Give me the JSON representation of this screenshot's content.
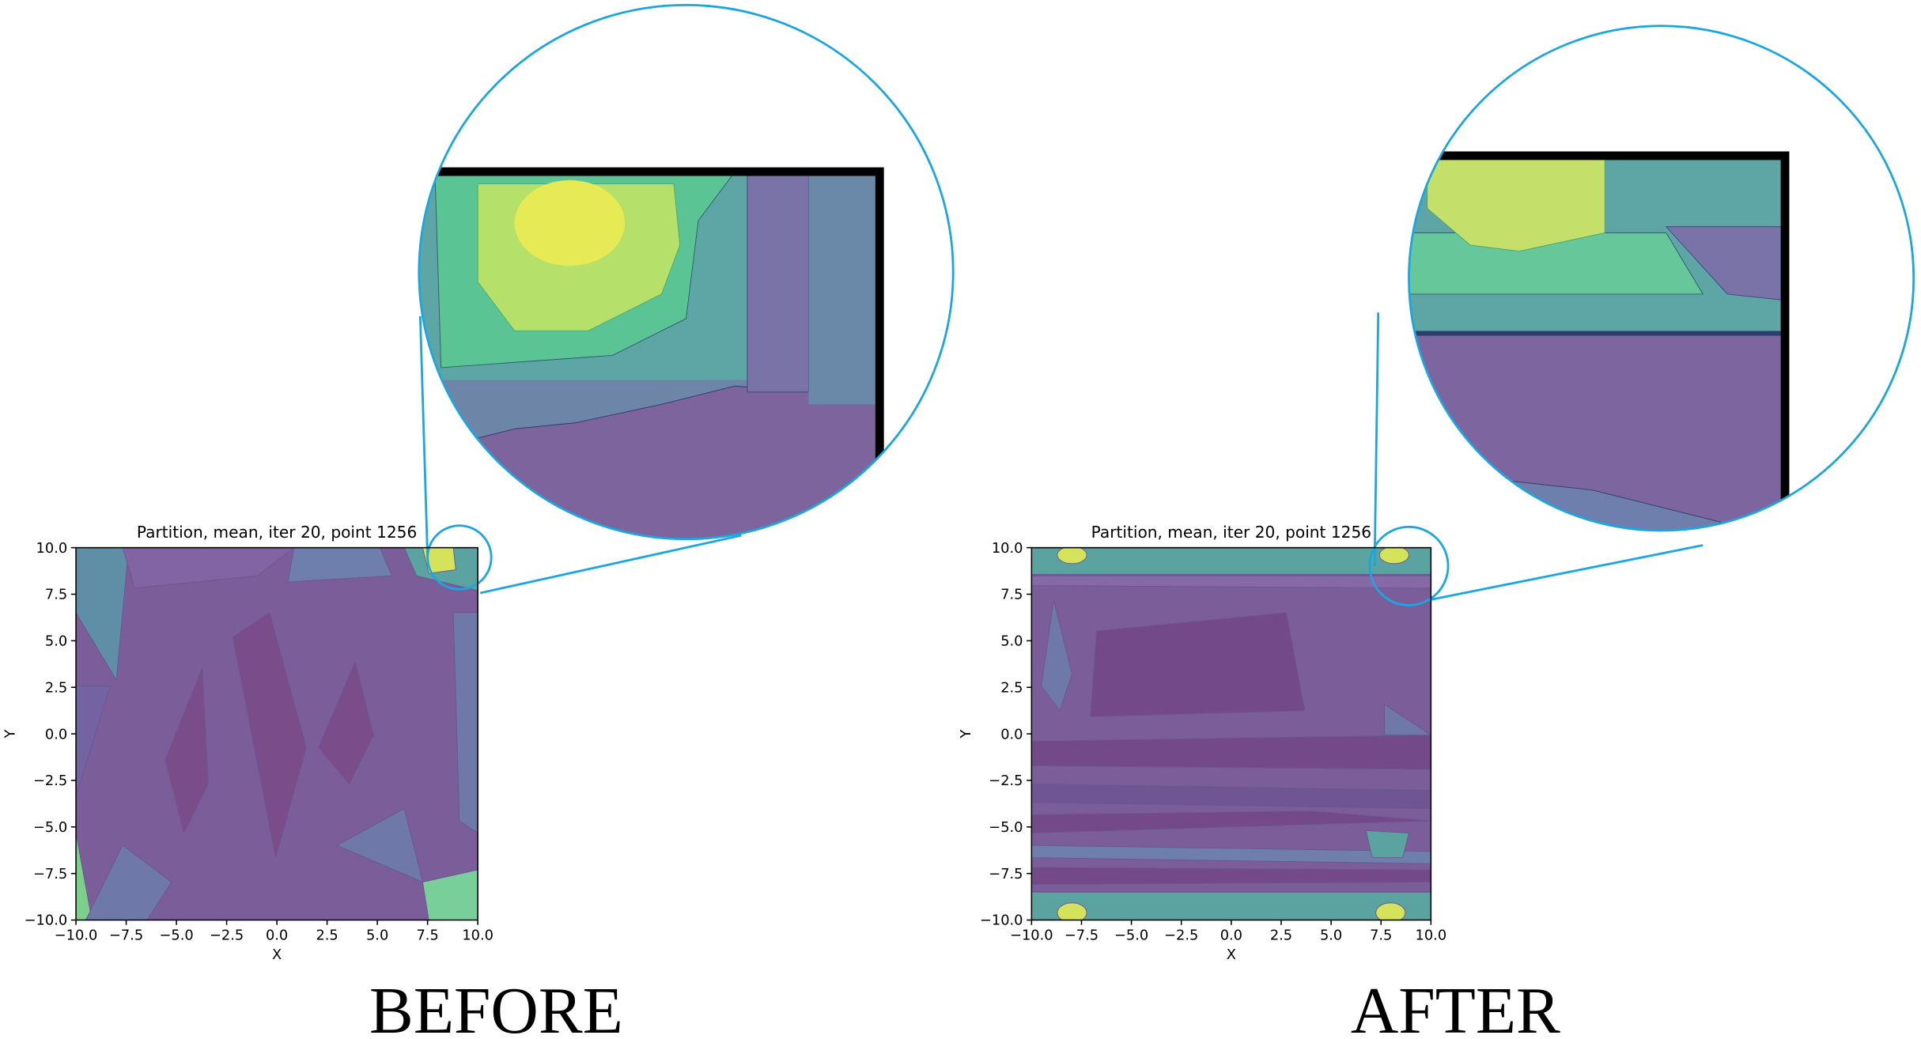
{
  "chart_data": [
    {
      "type": "partition",
      "title": "Partition, mean, iter 20, point 1256",
      "xlabel": "X",
      "ylabel": "Y",
      "xlim": [
        -10,
        10
      ],
      "ylim": [
        -10,
        10
      ],
      "xticks": [
        {
          "value": -10,
          "label": "−10.0"
        },
        {
          "value": -7.5,
          "label": "−7.5"
        },
        {
          "value": -5,
          "label": "−5.0"
        },
        {
          "value": -2.5,
          "label": "−2.5"
        },
        {
          "value": 0,
          "label": "0.0"
        },
        {
          "value": 2.5,
          "label": "2.5"
        },
        {
          "value": 5,
          "label": "5.0"
        },
        {
          "value": 7.5,
          "label": "7.5"
        },
        {
          "value": 10,
          "label": "10.0"
        }
      ],
      "yticks": [
        {
          "value": -10,
          "label": "−10.0"
        },
        {
          "value": -7.5,
          "label": "−7.5"
        },
        {
          "value": -5,
          "label": "−5.0"
        },
        {
          "value": -2.5,
          "label": "−2.5"
        },
        {
          "value": 0,
          "label": "0.0"
        },
        {
          "value": 2.5,
          "label": "2.5"
        },
        {
          "value": 5,
          "label": "5.0"
        },
        {
          "value": 7.5,
          "label": "7.5"
        },
        {
          "value": 10,
          "label": "10.0"
        }
      ],
      "caption": "BEFORE"
    },
    {
      "type": "partition",
      "title": "Partition, mean, iter 20, point 1256",
      "xlabel": "X",
      "ylabel": "Y",
      "xlim": [
        -10,
        10
      ],
      "ylim": [
        -10,
        10
      ],
      "xticks": [
        {
          "value": -10,
          "label": "−10.0"
        },
        {
          "value": -7.5,
          "label": "−7.5"
        },
        {
          "value": -5,
          "label": "−5.0"
        },
        {
          "value": -2.5,
          "label": "−2.5"
        },
        {
          "value": 0,
          "label": "0.0"
        },
        {
          "value": 2.5,
          "label": "2.5"
        },
        {
          "value": 5,
          "label": "5.0"
        },
        {
          "value": 7.5,
          "label": "7.5"
        },
        {
          "value": 10,
          "label": "10.0"
        }
      ],
      "yticks": [
        {
          "value": -10,
          "label": "−10.0"
        },
        {
          "value": -7.5,
          "label": "−7.5"
        },
        {
          "value": -5,
          "label": "−5.0"
        },
        {
          "value": -2.5,
          "label": "−2.5"
        },
        {
          "value": 0,
          "label": "0.0"
        },
        {
          "value": 2.5,
          "label": "2.5"
        },
        {
          "value": 5,
          "label": "5.0"
        },
        {
          "value": 7.5,
          "label": "7.5"
        },
        {
          "value": 10,
          "label": "10.0"
        }
      ],
      "caption": "AFTER"
    }
  ]
}
